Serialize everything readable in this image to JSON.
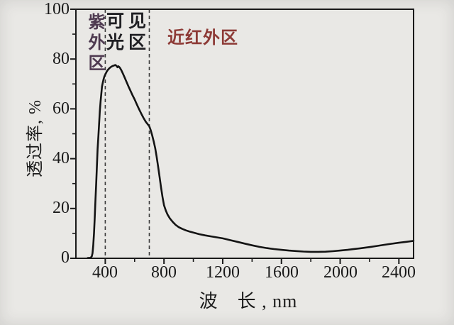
{
  "chart_data": {
    "type": "line",
    "title": "",
    "xlabel": "波　长 , nm",
    "ylabel": "透过率, %",
    "xlim": [
      200,
      2500
    ],
    "ylim": [
      0,
      100
    ],
    "grid": false,
    "legend": "none",
    "x_tick_labels": [
      "400",
      "800",
      "1200",
      "1600",
      "2000",
      "2400"
    ],
    "y_tick_labels": [
      "100",
      "80",
      "60",
      "40",
      "20",
      "0"
    ],
    "x_major_ticks": [
      400,
      800,
      1200,
      1600,
      2000,
      2400
    ],
    "x_minor_ticks": [
      600,
      1000,
      1400,
      1800,
      2200
    ],
    "y_major_ticks": [
      0,
      20,
      40,
      60,
      80,
      100
    ],
    "y_minor_ticks": [
      10,
      30,
      50,
      70,
      90
    ],
    "curve_color": "#141414",
    "frame_color": "#1a1a1a",
    "divider_color": "#3c3c3c",
    "background_color": "#e9e8e5",
    "region_dividers_nm": [
      400,
      700
    ],
    "annotations": [
      {
        "text": "紫外区",
        "meaning": "ultraviolet-region",
        "color": "#4e3a50"
      },
      {
        "text": "可见光区",
        "meaning": "visible-light-region",
        "color": "#1f1f23"
      },
      {
        "text": "近红外区",
        "meaning": "near-infrared-region",
        "color": "#8d3a36"
      }
    ],
    "series": [
      {
        "name": "transmittance-spectrum",
        "points": [
          [
            280,
            0.1
          ],
          [
            300,
            0.2
          ],
          [
            308,
            0.8
          ],
          [
            313,
            2
          ],
          [
            318,
            5
          ],
          [
            323,
            10
          ],
          [
            328,
            16
          ],
          [
            333,
            23
          ],
          [
            338,
            30
          ],
          [
            343,
            37
          ],
          [
            348,
            44
          ],
          [
            353,
            49
          ],
          [
            358,
            54
          ],
          [
            363,
            59
          ],
          [
            368,
            63
          ],
          [
            373,
            66
          ],
          [
            378,
            69
          ],
          [
            383,
            70.5
          ],
          [
            388,
            71.8
          ],
          [
            394,
            73
          ],
          [
            400,
            73.8
          ],
          [
            410,
            75
          ],
          [
            420,
            75.8
          ],
          [
            430,
            76.4
          ],
          [
            440,
            76.9
          ],
          [
            450,
            77.2
          ],
          [
            460,
            77.4
          ],
          [
            468,
            77.6
          ],
          [
            476,
            77.3
          ],
          [
            483,
            76.7
          ],
          [
            489,
            77.1
          ],
          [
            495,
            76.8
          ],
          [
            502,
            76.3
          ],
          [
            510,
            75.4
          ],
          [
            520,
            74.2
          ],
          [
            532,
            72.6
          ],
          [
            545,
            70.8
          ],
          [
            558,
            69
          ],
          [
            572,
            67.2
          ],
          [
            586,
            65.4
          ],
          [
            600,
            63.8
          ],
          [
            615,
            61.8
          ],
          [
            630,
            59.9
          ],
          [
            645,
            58.1
          ],
          [
            660,
            56.4
          ],
          [
            675,
            54.9
          ],
          [
            688,
            53.9
          ],
          [
            700,
            53
          ],
          [
            710,
            51.4
          ],
          [
            720,
            49.3
          ],
          [
            730,
            46.9
          ],
          [
            740,
            44.2
          ],
          [
            750,
            40.8
          ],
          [
            760,
            36.8
          ],
          [
            770,
            32.6
          ],
          [
            780,
            28.5
          ],
          [
            790,
            24.6
          ],
          [
            800,
            21.3
          ],
          [
            812,
            19.2
          ],
          [
            825,
            17.5
          ],
          [
            840,
            16
          ],
          [
            860,
            14.6
          ],
          [
            880,
            13.4
          ],
          [
            900,
            12.5
          ],
          [
            925,
            11.8
          ],
          [
            950,
            11.2
          ],
          [
            975,
            10.7
          ],
          [
            1000,
            10.3
          ],
          [
            1040,
            9.7
          ],
          [
            1080,
            9.2
          ],
          [
            1120,
            8.8
          ],
          [
            1160,
            8.4
          ],
          [
            1200,
            8
          ],
          [
            1250,
            7.3
          ],
          [
            1300,
            6.6
          ],
          [
            1350,
            5.9
          ],
          [
            1400,
            5.2
          ],
          [
            1450,
            4.6
          ],
          [
            1500,
            4.1
          ],
          [
            1550,
            3.7
          ],
          [
            1600,
            3.4
          ],
          [
            1650,
            3.1
          ],
          [
            1700,
            2.9
          ],
          [
            1750,
            2.7
          ],
          [
            1800,
            2.6
          ],
          [
            1850,
            2.6
          ],
          [
            1900,
            2.65
          ],
          [
            1950,
            2.85
          ],
          [
            2000,
            3.1
          ],
          [
            2050,
            3.4
          ],
          [
            2100,
            3.75
          ],
          [
            2150,
            4.1
          ],
          [
            2200,
            4.5
          ],
          [
            2250,
            4.95
          ],
          [
            2300,
            5.4
          ],
          [
            2350,
            5.85
          ],
          [
            2400,
            6.25
          ],
          [
            2450,
            6.6
          ],
          [
            2500,
            7
          ]
        ]
      }
    ]
  }
}
